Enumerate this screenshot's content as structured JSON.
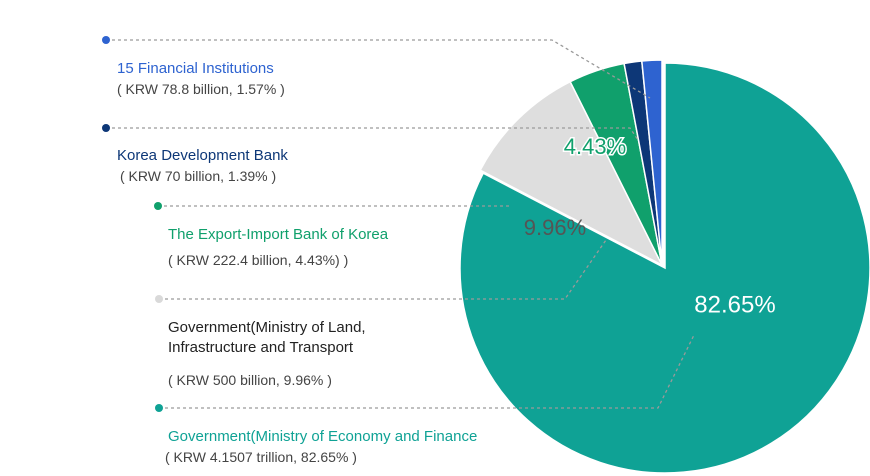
{
  "chart_data": {
    "type": "pie",
    "title": "",
    "slices": [
      {
        "name": "Government(Ministry of Economy and Finance",
        "amount": "( KRW 4.1507 trillion, 82.65% )",
        "value": 82.65,
        "pct_label": "82.65%",
        "color": "#0fa295",
        "label_color": "#0fa295",
        "dot_color": "#0fa295"
      },
      {
        "name": "Government(Ministry of Land, Infrastructure and Transport",
        "amount": "( KRW 500 billion, 9.96% )",
        "value": 9.96,
        "pct_label": "9.96%",
        "color": "#dedede",
        "label_color": "#222222",
        "dot_color": "#d9d9d9"
      },
      {
        "name": "The Export-Import Bank of Korea",
        "amount": "( KRW 222.4 billion, 4.43%) )",
        "value": 4.43,
        "pct_label": "4.43%",
        "color": "#10a06c",
        "label_color": "#10a06c",
        "dot_color": "#10a06c"
      },
      {
        "name": "Korea Development Bank",
        "amount": "( KRW 70 billion, 1.39% )",
        "value": 1.39,
        "pct_label": "",
        "color": "#0d3777",
        "label_color": "#0d3777",
        "dot_color": "#0d3777"
      },
      {
        "name": "15 Financial Institutions",
        "amount": "( KRW 78.8 billion, 1.57% )",
        "value": 1.57,
        "pct_label": "",
        "color": "#2e63d0",
        "label_color": "#2e63d0",
        "dot_color": "#2e63d0"
      }
    ]
  }
}
